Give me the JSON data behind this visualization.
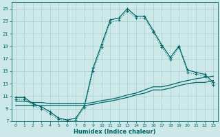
{
  "xlabel": "Humidex (Indice chaleur)",
  "xlim": [
    -0.5,
    23.5
  ],
  "ylim": [
    7,
    26
  ],
  "yticks": [
    7,
    9,
    11,
    13,
    15,
    17,
    19,
    21,
    23,
    25
  ],
  "xticks": [
    0,
    1,
    2,
    3,
    4,
    5,
    6,
    7,
    8,
    9,
    10,
    11,
    12,
    13,
    14,
    15,
    16,
    17,
    18,
    19,
    20,
    21,
    22,
    23
  ],
  "bg_color": "#cce8e8",
  "grid_color": "#aacfcf",
  "line_color": "#006666",
  "line1_x": [
    0,
    1,
    2,
    3,
    4,
    5,
    6,
    7,
    8,
    9,
    10,
    11,
    12,
    13,
    14,
    15,
    16,
    17,
    18,
    19,
    20,
    21,
    22,
    23
  ],
  "line1_y": [
    10.8,
    10.8,
    9.8,
    9.3,
    8.5,
    7.5,
    7.2,
    7.5,
    9.5,
    15.5,
    19.3,
    23.2,
    23.5,
    25.0,
    23.8,
    23.8,
    21.5,
    19.2,
    17.2,
    19.0,
    15.2,
    14.8,
    14.5,
    13.2
  ],
  "line2_x": [
    0,
    1,
    2,
    3,
    4,
    5,
    6,
    7,
    8,
    9,
    10,
    11,
    12,
    13,
    14,
    15,
    16,
    17,
    18,
    19,
    20,
    21,
    22,
    23
  ],
  "line2_y": [
    10.5,
    10.5,
    9.5,
    9.0,
    8.2,
    7.3,
    7.0,
    7.2,
    9.2,
    15.0,
    18.8,
    22.8,
    23.2,
    24.6,
    23.5,
    23.5,
    21.2,
    18.8,
    16.8,
    18.8,
    14.8,
    14.5,
    14.2,
    12.8
  ],
  "line3_x": [
    0,
    1,
    2,
    3,
    4,
    5,
    6,
    7,
    8,
    9,
    10,
    11,
    12,
    13,
    14,
    15,
    16,
    17,
    18,
    19,
    20,
    21,
    22,
    23
  ],
  "line3_y": [
    10.2,
    10.2,
    10.0,
    10.0,
    9.8,
    9.8,
    9.8,
    9.8,
    9.8,
    10.0,
    10.3,
    10.5,
    10.8,
    11.2,
    11.5,
    12.0,
    12.5,
    12.5,
    12.8,
    13.2,
    13.5,
    13.8,
    14.0,
    14.2
  ],
  "line4_x": [
    0,
    1,
    2,
    3,
    4,
    5,
    6,
    7,
    8,
    9,
    10,
    11,
    12,
    13,
    14,
    15,
    16,
    17,
    18,
    19,
    20,
    21,
    22,
    23
  ],
  "line4_y": [
    9.5,
    9.5,
    9.5,
    9.5,
    9.5,
    9.5,
    9.5,
    9.5,
    9.5,
    9.7,
    10.0,
    10.2,
    10.5,
    10.8,
    11.2,
    11.5,
    12.0,
    12.0,
    12.3,
    12.7,
    13.0,
    13.2,
    13.2,
    13.5
  ]
}
